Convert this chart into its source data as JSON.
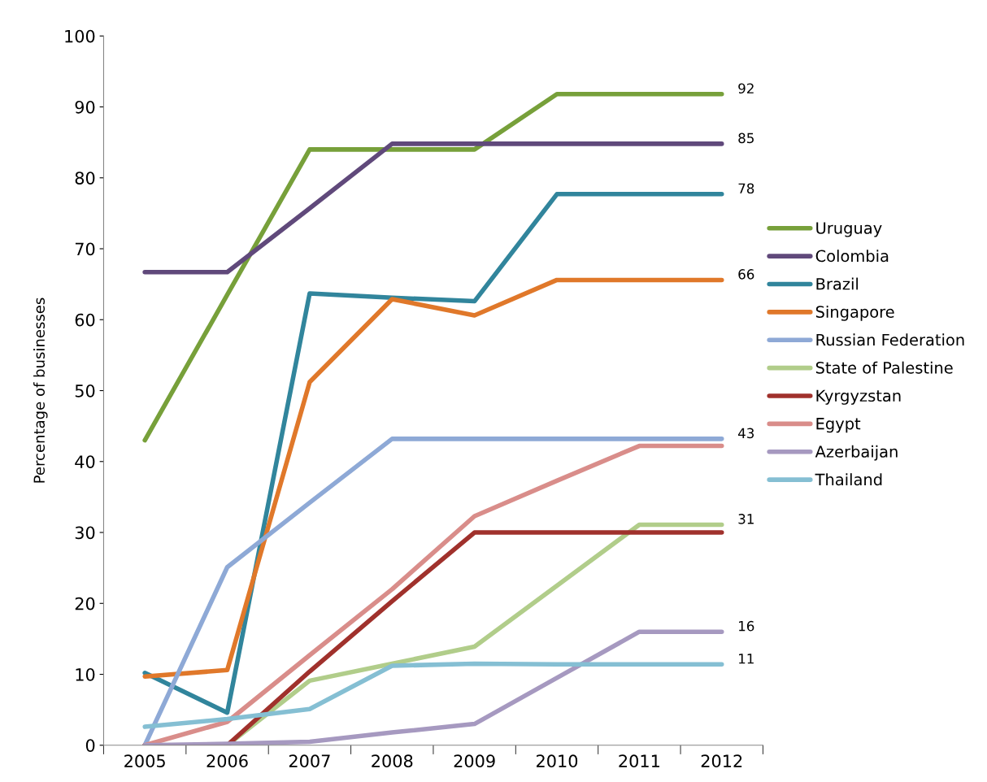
{
  "chart_data": {
    "type": "line",
    "ylabel": "Percentage of businesses",
    "categories": [
      "2005",
      "2006",
      "2007",
      "2008",
      "2009",
      "2010",
      "2011",
      "2012"
    ],
    "series": [
      {
        "name": "Uruguay",
        "color": "#77a03a",
        "values": [
          43,
          63.5,
          84,
          84,
          84,
          91.8,
          91.8,
          91.8
        ]
      },
      {
        "name": "Colombia",
        "color": "#60497b",
        "values": [
          66.7,
          66.7,
          75.7,
          84.8,
          84.8,
          84.8,
          84.8,
          84.8
        ]
      },
      {
        "name": "Brazil",
        "color": "#31859c",
        "values": [
          10.2,
          4.6,
          63.7,
          63.1,
          62.6,
          77.7,
          77.7,
          77.7
        ]
      },
      {
        "name": "Singapore",
        "color": "#e0782a",
        "values": [
          9.7,
          10.6,
          51.2,
          62.9,
          60.6,
          65.6,
          65.6,
          65.6
        ]
      },
      {
        "name": "Russian Federation",
        "color": "#8ea9d6",
        "values": [
          0,
          25.1,
          34.2,
          43.2,
          43.2,
          43.2,
          43.2,
          43.2
        ]
      },
      {
        "name": "State of Palestine",
        "color": "#b1cd8a",
        "values": [
          0,
          0,
          9.1,
          11.5,
          13.9,
          22.5,
          31.1,
          31.1
        ]
      },
      {
        "name": "Kyrgyzstan",
        "color": "#a0312c",
        "values": [
          0,
          0,
          10.4,
          20.3,
          30,
          30,
          30,
          30
        ]
      },
      {
        "name": "Egypt",
        "color": "#d98d8a",
        "values": [
          0,
          3.3,
          12.7,
          22,
          32.3,
          37.3,
          42.2,
          42.2
        ]
      },
      {
        "name": "Azerbaijan",
        "color": "#a699c0",
        "values": [
          0,
          0.2,
          0.5,
          1.8,
          3,
          9.5,
          16,
          16
        ]
      },
      {
        "name": "Thailand",
        "color": "#85bfd3",
        "values": [
          2.6,
          3.7,
          5.1,
          11.2,
          11.5,
          11.4,
          11.4,
          11.4
        ]
      }
    ],
    "annotations": [
      {
        "text": "92",
        "x": "2012",
        "y": 91.8
      },
      {
        "text": "85",
        "x": "2012",
        "y": 84.8
      },
      {
        "text": "78",
        "x": "2012",
        "y": 77.7
      },
      {
        "text": "66",
        "x": "2012",
        "y": 65.6
      },
      {
        "text": "43",
        "x": "2012",
        "y": 43.2
      },
      {
        "text": "31",
        "x": "2012",
        "y": 31.1
      },
      {
        "text": "16",
        "x": "2012",
        "y": 16
      },
      {
        "text": "11",
        "x": "2012",
        "y": 11.4
      }
    ],
    "ylim": [
      0,
      100
    ],
    "yticks": [
      0,
      10,
      20,
      30,
      40,
      50,
      60,
      70,
      80,
      90,
      100
    ],
    "grid": false,
    "legend": "right",
    "marker": "none",
    "line_style": "solid"
  }
}
